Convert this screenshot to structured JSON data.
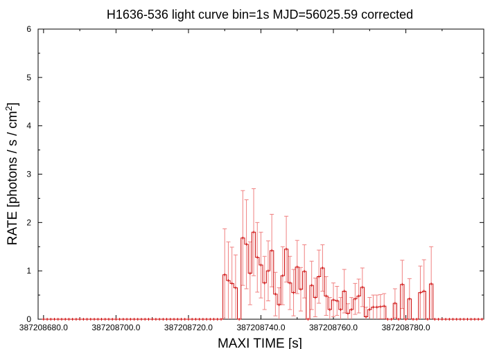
{
  "chart_data": {
    "type": "line",
    "title": "H1636-536 light curve bin=1s MJD=56025.59 corrected",
    "xlabel": "MAXI TIME [s]",
    "ylabel_main": "RATE [photons / s / cm",
    "ylabel_sup": "2",
    "ylabel_close": "]",
    "xlim": [
      387208678.5,
      387208801.5
    ],
    "ylim": [
      0,
      6
    ],
    "x_ticks": [
      {
        "value": 387208680,
        "label": "387208680.0"
      },
      {
        "value": 387208700,
        "label": "387208700.0"
      },
      {
        "value": 387208720,
        "label": "387208720.0"
      },
      {
        "value": 387208740,
        "label": "387208740.0"
      },
      {
        "value": 387208760,
        "label": "387208760.0"
      },
      {
        "value": 387208780,
        "label": "387208780.0"
      }
    ],
    "y_ticks": [
      {
        "value": 0,
        "label": "0"
      },
      {
        "value": 1,
        "label": "1"
      },
      {
        "value": 2,
        "label": "2"
      },
      {
        "value": 3,
        "label": "3"
      },
      {
        "value": 4,
        "label": "4"
      },
      {
        "value": 5,
        "label": "5"
      },
      {
        "value": 6,
        "label": "6"
      }
    ],
    "x_start": 387208680,
    "bin_width_s": 1,
    "series": [
      {
        "style": "step-with-errorbars",
        "color": "#cc0000",
        "errorbar_color": "#f08080",
        "values": [
          0,
          0,
          0,
          0,
          0,
          0,
          0,
          0,
          0,
          0,
          0,
          0,
          0,
          0,
          0,
          0,
          0,
          0,
          0,
          0,
          0,
          0,
          0,
          0,
          0,
          0,
          0,
          0,
          0,
          0,
          0,
          0,
          0,
          0,
          0,
          0,
          0,
          0,
          0,
          0,
          0,
          0,
          0,
          0,
          0,
          0,
          0,
          0,
          0,
          0,
          0.92,
          0.8,
          0.74,
          0.65,
          0,
          1.68,
          1.55,
          0.95,
          1.8,
          1.28,
          1.12,
          0.75,
          1.0,
          1.42,
          0.52,
          0.3,
          0.9,
          1.45,
          0.75,
          0.55,
          1.08,
          0.62,
          0.99,
          0,
          0.7,
          0.45,
          0.88,
          1.06,
          0.48,
          0.2,
          0.4,
          0.38,
          0.2,
          0.58,
          0.12,
          0.2,
          0.42,
          0.48,
          0.66,
          0.05,
          0.2,
          0.25,
          0.25,
          0.26,
          0.27,
          0,
          0,
          0.33,
          0,
          0.72,
          0,
          0.42,
          0,
          0,
          0.55,
          0.58,
          0,
          0.73,
          0,
          0,
          0,
          0,
          0,
          0,
          0,
          0,
          0,
          0,
          0,
          0,
          0,
          0
        ],
        "errors": [
          0,
          0,
          0,
          0,
          0,
          0,
          0,
          0,
          0,
          0,
          0,
          0,
          0,
          0,
          0,
          0,
          0,
          0,
          0,
          0,
          0,
          0,
          0,
          0,
          0,
          0,
          0,
          0,
          0,
          0,
          0,
          0,
          0,
          0,
          0,
          0,
          0,
          0,
          0,
          0,
          0,
          0,
          0,
          0,
          0,
          0,
          0,
          0,
          0,
          0,
          0.95,
          0.8,
          0.75,
          0.68,
          0,
          0.98,
          0.92,
          0.65,
          0.9,
          0.72,
          0.68,
          0.55,
          0.62,
          0.75,
          0.45,
          0.35,
          0.6,
          0.68,
          0.55,
          0.48,
          0.55,
          0.45,
          0.55,
          0,
          0.5,
          0.4,
          0.55,
          0.48,
          0.4,
          0.25,
          0.35,
          0.3,
          0.25,
          0.45,
          0.2,
          0.25,
          0.32,
          0.35,
          0.4,
          0.2,
          0.25,
          0.25,
          0.25,
          0.25,
          0.26,
          0,
          0,
          0.3,
          0,
          0.5,
          0,
          0.42,
          0,
          0,
          0.55,
          0.65,
          0,
          0.77,
          0,
          0,
          0,
          0,
          0,
          0,
          0,
          0,
          0,
          0,
          0,
          0,
          0,
          0
        ]
      }
    ],
    "grid": false,
    "legend": "none"
  }
}
